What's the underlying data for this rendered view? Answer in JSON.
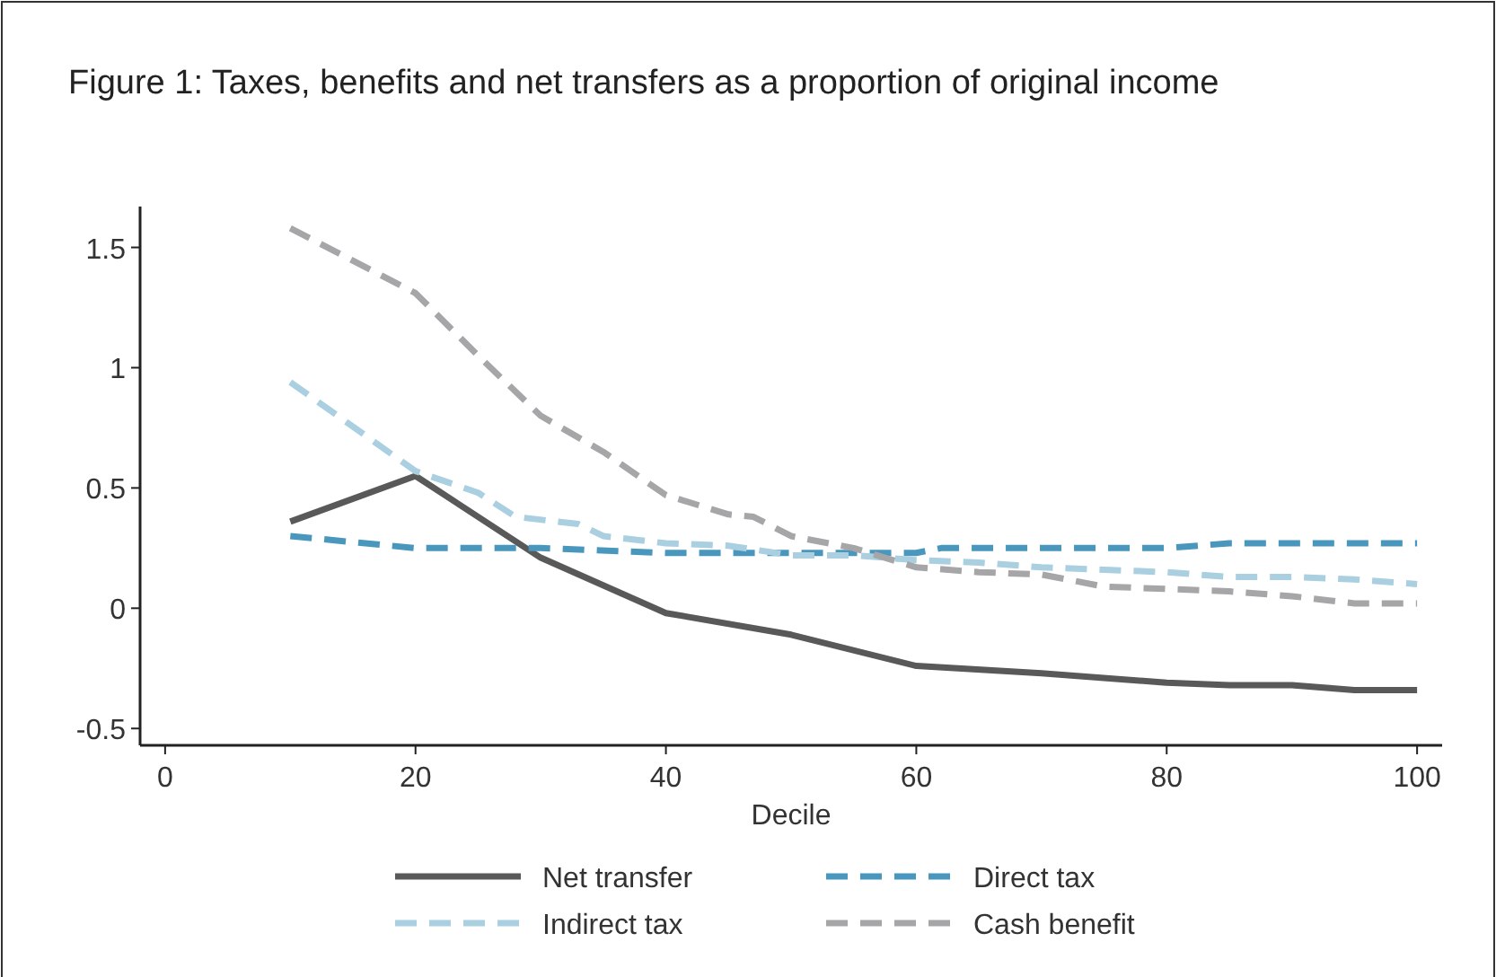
{
  "chart_data": {
    "type": "line",
    "title": "Figure 1: Taxes, benefits and net transfers as a proportion of original income",
    "xlabel": "Decile",
    "xlim": [
      -2,
      102
    ],
    "xticks": [
      0,
      20,
      40,
      60,
      80,
      100
    ],
    "ylim": [
      -0.57,
      1.67
    ],
    "yticks": [
      -0.5,
      0,
      0.5,
      1,
      1.5
    ],
    "grid": false,
    "legend": "bottom",
    "series": [
      {
        "name": "Net transfer",
        "color": "#595959",
        "line_style": "solid",
        "x": [
          10,
          20,
          30,
          40,
          50,
          60,
          70,
          80,
          85,
          90,
          95,
          100
        ],
        "values": [
          0.36,
          0.55,
          0.21,
          -0.02,
          -0.11,
          -0.24,
          -0.27,
          -0.31,
          -0.32,
          -0.32,
          -0.34,
          -0.34
        ]
      },
      {
        "name": "Direct tax",
        "color": "#4a97bd",
        "line_style": "dashed",
        "x": [
          10,
          20,
          30,
          40,
          50,
          60,
          62,
          80,
          85,
          100
        ],
        "values": [
          0.3,
          0.25,
          0.25,
          0.23,
          0.23,
          0.23,
          0.25,
          0.25,
          0.27,
          0.27
        ]
      },
      {
        "name": "Indirect tax",
        "color": "#a9cfe0",
        "line_style": "dashed",
        "x": [
          10,
          20,
          25,
          28,
          33,
          35,
          40,
          45,
          50,
          55,
          60,
          65,
          70,
          75,
          80,
          85,
          90,
          95,
          100
        ],
        "values": [
          0.94,
          0.57,
          0.48,
          0.38,
          0.35,
          0.3,
          0.27,
          0.26,
          0.22,
          0.22,
          0.2,
          0.19,
          0.17,
          0.16,
          0.15,
          0.13,
          0.13,
          0.12,
          0.1
        ]
      },
      {
        "name": "Cash benefit",
        "color": "#a6a6a8",
        "line_style": "dashed",
        "x": [
          10,
          20,
          25,
          30,
          35,
          40,
          45,
          47,
          50,
          55,
          60,
          65,
          70,
          75,
          80,
          85,
          90,
          95,
          100
        ],
        "values": [
          1.58,
          1.31,
          1.05,
          0.8,
          0.65,
          0.47,
          0.39,
          0.38,
          0.3,
          0.25,
          0.17,
          0.15,
          0.14,
          0.09,
          0.08,
          0.07,
          0.05,
          0.02,
          0.02
        ]
      }
    ]
  }
}
